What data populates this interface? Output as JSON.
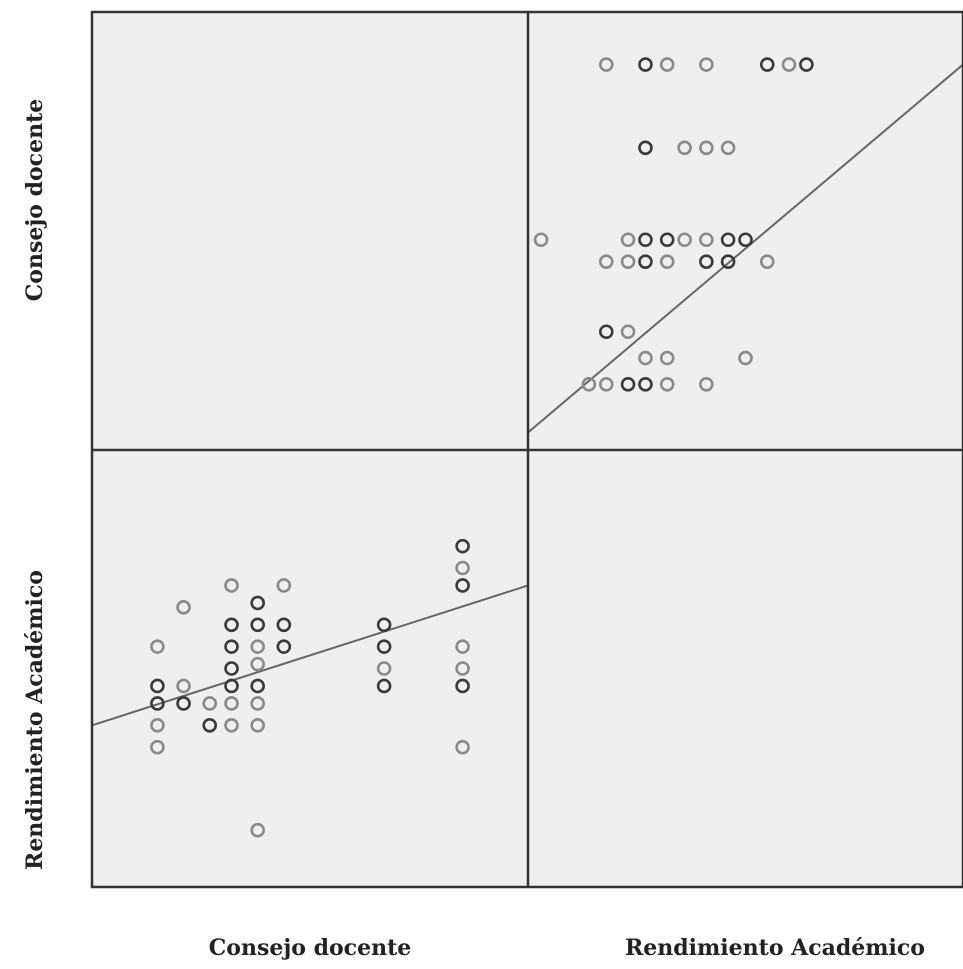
{
  "chart_data": {
    "type": "scatter",
    "variables": [
      "Consejo docente",
      "Rendimiento Académico"
    ],
    "x_labels": [
      "Consejo docente",
      "Rendimiento Académico"
    ],
    "y_labels": [
      "Consejo docente",
      "Rendimiento Académico"
    ],
    "grid": false,
    "panels": [
      {
        "x_variable": "Rendimiento Académico",
        "y_variable": "Consejo docente",
        "xlim": [
          0,
          100
        ],
        "ylim": [
          0,
          100
        ],
        "points": [
          {
            "x": 18,
            "y": 88,
            "d": 0
          },
          {
            "x": 27,
            "y": 88,
            "d": 1
          },
          {
            "x": 32,
            "y": 88,
            "d": 0
          },
          {
            "x": 41,
            "y": 88,
            "d": 0
          },
          {
            "x": 55,
            "y": 88,
            "d": 1
          },
          {
            "x": 60,
            "y": 88,
            "d": 0
          },
          {
            "x": 64,
            "y": 88,
            "d": 1
          },
          {
            "x": 27,
            "y": 69,
            "d": 1
          },
          {
            "x": 36,
            "y": 69,
            "d": 0
          },
          {
            "x": 41,
            "y": 69,
            "d": 0
          },
          {
            "x": 46,
            "y": 69,
            "d": 0
          },
          {
            "x": 3,
            "y": 48,
            "d": 0
          },
          {
            "x": 23,
            "y": 48,
            "d": 0
          },
          {
            "x": 27,
            "y": 48,
            "d": 1
          },
          {
            "x": 32,
            "y": 48,
            "d": 1
          },
          {
            "x": 36,
            "y": 48,
            "d": 0
          },
          {
            "x": 41,
            "y": 48,
            "d": 0
          },
          {
            "x": 46,
            "y": 48,
            "d": 1
          },
          {
            "x": 50,
            "y": 48,
            "d": 1
          },
          {
            "x": 18,
            "y": 43,
            "d": 0
          },
          {
            "x": 23,
            "y": 43,
            "d": 0
          },
          {
            "x": 27,
            "y": 43,
            "d": 1
          },
          {
            "x": 32,
            "y": 43,
            "d": 0
          },
          {
            "x": 41,
            "y": 43,
            "d": 1
          },
          {
            "x": 46,
            "y": 43,
            "d": 1
          },
          {
            "x": 55,
            "y": 43,
            "d": 0
          },
          {
            "x": 18,
            "y": 27,
            "d": 1
          },
          {
            "x": 23,
            "y": 27,
            "d": 0
          },
          {
            "x": 27,
            "y": 21,
            "d": 0
          },
          {
            "x": 32,
            "y": 21,
            "d": 0
          },
          {
            "x": 50,
            "y": 21,
            "d": 0
          },
          {
            "x": 14,
            "y": 15,
            "d": 0
          },
          {
            "x": 18,
            "y": 15,
            "d": 0
          },
          {
            "x": 23,
            "y": 15,
            "d": 1
          },
          {
            "x": 27,
            "y": 15,
            "d": 1
          },
          {
            "x": 32,
            "y": 15,
            "d": 0
          },
          {
            "x": 41,
            "y": 15,
            "d": 0
          }
        ],
        "fit_line": {
          "x": [
            0,
            100
          ],
          "y": [
            4,
            88
          ]
        }
      },
      {
        "x_variable": "Consejo docente",
        "y_variable": "Rendimiento Académico",
        "xlim": [
          0,
          100
        ],
        "ylim": [
          0,
          100
        ],
        "points": [
          {
            "x": 85,
            "y": 78,
            "d": 1
          },
          {
            "x": 85,
            "y": 73,
            "d": 0
          },
          {
            "x": 85,
            "y": 69,
            "d": 1
          },
          {
            "x": 85,
            "y": 55,
            "d": 0
          },
          {
            "x": 85,
            "y": 50,
            "d": 0
          },
          {
            "x": 85,
            "y": 46,
            "d": 1
          },
          {
            "x": 85,
            "y": 32,
            "d": 0
          },
          {
            "x": 67,
            "y": 60,
            "d": 1
          },
          {
            "x": 67,
            "y": 55,
            "d": 1
          },
          {
            "x": 67,
            "y": 50,
            "d": 0
          },
          {
            "x": 67,
            "y": 46,
            "d": 1
          },
          {
            "x": 44,
            "y": 69,
            "d": 0
          },
          {
            "x": 44,
            "y": 60,
            "d": 1
          },
          {
            "x": 44,
            "y": 55,
            "d": 1
          },
          {
            "x": 38,
            "y": 65,
            "d": 1
          },
          {
            "x": 38,
            "y": 60,
            "d": 1
          },
          {
            "x": 38,
            "y": 55,
            "d": 0
          },
          {
            "x": 38,
            "y": 51,
            "d": 0
          },
          {
            "x": 38,
            "y": 46,
            "d": 1
          },
          {
            "x": 38,
            "y": 42,
            "d": 0
          },
          {
            "x": 38,
            "y": 37,
            "d": 0
          },
          {
            "x": 38,
            "y": 13,
            "d": 0
          },
          {
            "x": 32,
            "y": 69,
            "d": 0
          },
          {
            "x": 32,
            "y": 60,
            "d": 1
          },
          {
            "x": 32,
            "y": 55,
            "d": 1
          },
          {
            "x": 32,
            "y": 46,
            "d": 1
          },
          {
            "x": 32,
            "y": 42,
            "d": 0
          },
          {
            "x": 32,
            "y": 37,
            "d": 0
          },
          {
            "x": 15,
            "y": 55,
            "d": 0
          },
          {
            "x": 15,
            "y": 46,
            "d": 1
          },
          {
            "x": 15,
            "y": 42,
            "d": 1
          },
          {
            "x": 15,
            "y": 37,
            "d": 0
          },
          {
            "x": 15,
            "y": 32,
            "d": 0
          },
          {
            "x": 21,
            "y": 64,
            "d": 0
          },
          {
            "x": 21,
            "y": 46,
            "d": 0
          },
          {
            "x": 21,
            "y": 42,
            "d": 1
          },
          {
            "x": 27,
            "y": 37,
            "d": 1
          },
          {
            "x": 27,
            "y": 42,
            "d": 0
          },
          {
            "x": 32,
            "y": 50,
            "d": 1
          }
        ],
        "fit_line": {
          "x": [
            0,
            100
          ],
          "y": [
            37,
            69
          ]
        }
      }
    ]
  }
}
